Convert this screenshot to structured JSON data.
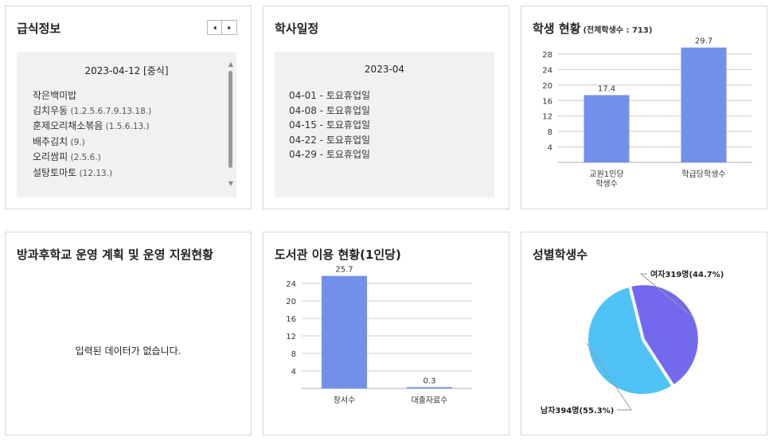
{
  "meal": {
    "title": "급식정보",
    "date_label": "2023-04-12 [중식]",
    "items": [
      {
        "name": "작은백미밥",
        "allergy": ""
      },
      {
        "name": "김치우동",
        "allergy": "(1.2.5.6.7.9.13.18.)"
      },
      {
        "name": "훈제오리채소볶음",
        "allergy": "(1.5.6.13.)"
      },
      {
        "name": "배추김치",
        "allergy": "(9.)"
      },
      {
        "name": "오리쌈피",
        "allergy": "(2.5.6.)"
      },
      {
        "name": "설탕토마토",
        "allergy": "(12.13.)"
      }
    ],
    "prev_icon": "triangle-left",
    "next_icon": "triangle-right"
  },
  "schedule": {
    "title": "학사일정",
    "month": "2023-04",
    "items": [
      "04-01 - 토요휴업일",
      "04-08 - 토요휴업일",
      "04-15 - 토요휴업일",
      "04-22 - 토요휴업일",
      "04-29 - 토요휴업일"
    ]
  },
  "students": {
    "title": "학생 현황",
    "subtitle": "(전체학생수 : 713)"
  },
  "afterschool": {
    "title": "방과후학교 운영 계획 및 운영 지원현황",
    "empty_message": "입력된 데이터가 없습니다."
  },
  "library": {
    "title": "도서관 이용 현황(1인당)"
  },
  "gender": {
    "title": "성별학생수"
  },
  "chart_data": [
    {
      "type": "bar",
      "categories": [
        [
          "교원1인당",
          "학생수"
        ],
        [
          "학급당학생수"
        ]
      ],
      "values": [
        17.4,
        29.7
      ],
      "value_labels": [
        "17.4",
        "29.7"
      ],
      "yticks": [
        "4",
        "8",
        "12",
        "16",
        "20",
        "24",
        "28"
      ],
      "ylim": [
        0,
        31.5
      ],
      "xlabel": "",
      "ylabel": "",
      "grid": true,
      "color": "#7090ea"
    },
    {
      "type": "bar",
      "categories": [
        [
          "장서수"
        ],
        [
          "대출자료수"
        ]
      ],
      "values": [
        25.7,
        0.3
      ],
      "value_labels": [
        "25.7",
        "0.3"
      ],
      "yticks": [
        "4",
        "8",
        "12",
        "16",
        "20",
        "24"
      ],
      "ylim": [
        0,
        28
      ],
      "xlabel": "",
      "ylabel": "",
      "grid": true,
      "color": "#7090ea"
    },
    {
      "type": "pie",
      "labels": [
        "여자319명(44.7%)",
        "남자394명(55.3%)"
      ],
      "values": [
        319,
        394
      ],
      "colors": [
        "#7369ef",
        "#4fc3f7"
      ]
    }
  ]
}
